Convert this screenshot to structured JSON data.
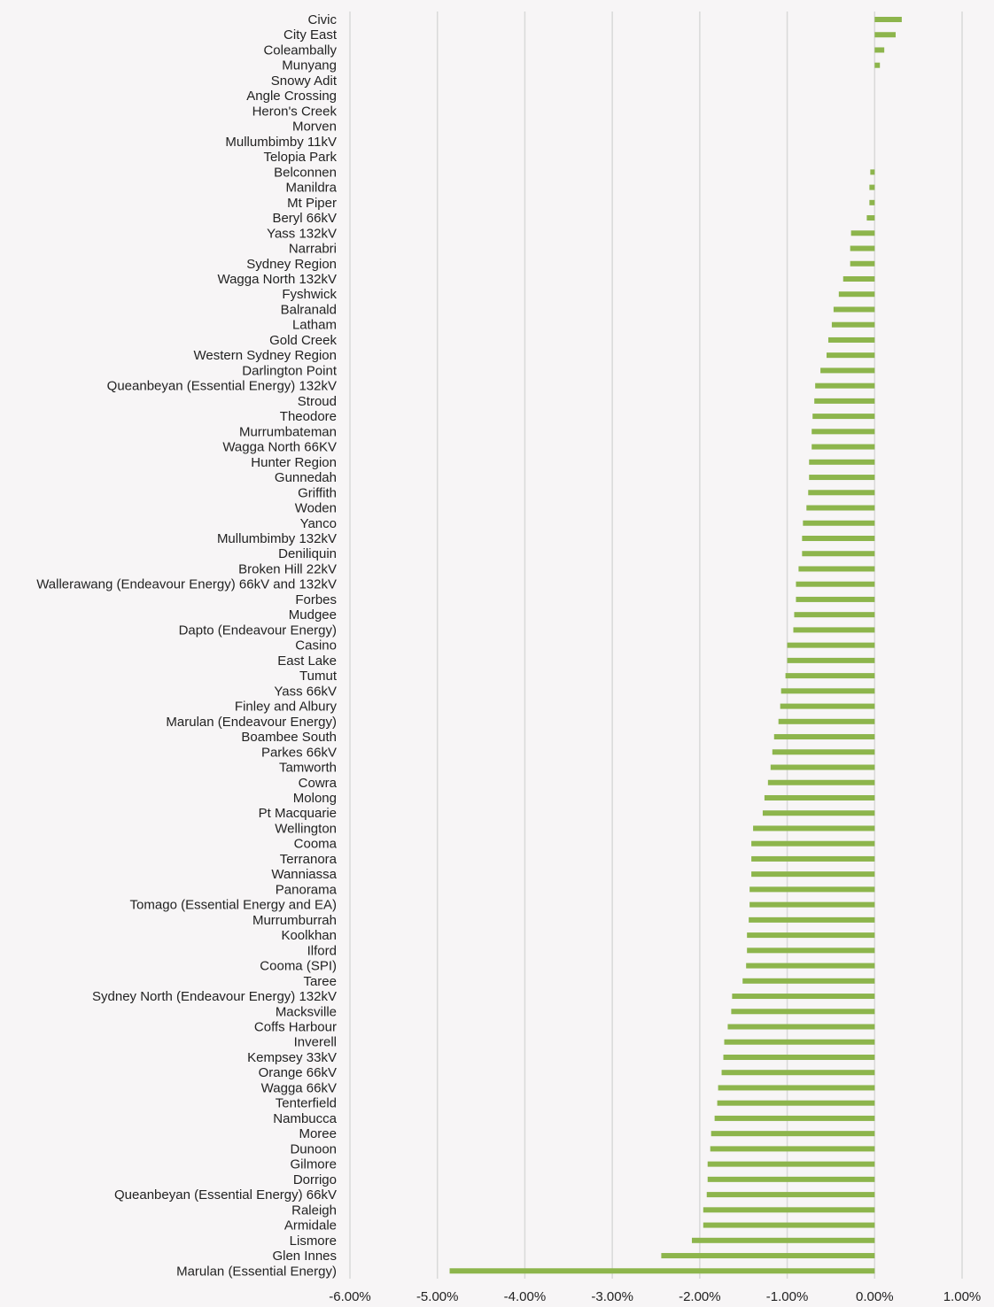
{
  "chart_data": {
    "type": "bar",
    "orientation": "horizontal",
    "title": "",
    "xlabel": "",
    "ylabel": "",
    "xlim": [
      -0.06,
      0.01
    ],
    "x_ticks": [
      -0.06,
      -0.05,
      -0.04,
      -0.03,
      -0.02,
      -0.01,
      0.0,
      0.01
    ],
    "x_tick_labels": [
      "-6.00%",
      "-5.00%",
      "-4.00%",
      "-3.00%",
      "-2.00%",
      "-1.00%",
      "0.00%",
      "1.00%"
    ],
    "grid": "vertical",
    "bar_color": "#8db54c",
    "categories": [
      "Civic",
      "City East",
      "Coleambally",
      "Munyang",
      "Snowy Adit",
      "Angle Crossing",
      "Heron's Creek",
      "Morven",
      "Mullumbimby 11kV",
      "Telopia Park",
      "Belconnen",
      "Manildra",
      "Mt Piper",
      "Beryl 66kV",
      "Yass 132kV",
      "Narrabri",
      "Sydney Region",
      "Wagga North 132kV",
      "Fyshwick",
      "Balranald",
      "Latham",
      "Gold Creek",
      "Western Sydney Region",
      "Darlington Point",
      "Queanbeyan (Essential Energy) 132kV",
      "Stroud",
      "Theodore",
      "Murrumbateman",
      "Wagga North 66KV",
      "Hunter Region",
      "Gunnedah",
      "Griffith",
      "Woden",
      "Yanco",
      "Mullumbimby 132kV",
      "Deniliquin",
      "Broken Hill 22kV",
      "Wallerawang (Endeavour Energy) 66kV and 132kV",
      "Forbes",
      "Mudgee",
      "Dapto (Endeavour Energy)",
      "Casino",
      "East Lake",
      "Tumut",
      "Yass 66kV",
      "Finley and Albury",
      "Marulan (Endeavour Energy)",
      "Boambee South",
      "Parkes 66kV",
      "Tamworth",
      "Cowra",
      "Molong",
      "Pt Macquarie",
      "Wellington",
      "Cooma",
      "Terranora",
      "Wanniassa",
      "Panorama",
      "Tomago (Essential Energy and EA)",
      "Murrumburrah",
      "Koolkhan",
      "Ilford",
      "Cooma (SPI)",
      "Taree",
      "Sydney North (Endeavour Energy) 132kV",
      "Macksville",
      "Coffs Harbour",
      "Inverell",
      "Kempsey 33kV",
      "Orange 66kV",
      "Wagga 66kV",
      "Tenterfield",
      "Nambucca",
      "Moree",
      "Dunoon",
      "Gilmore",
      "Dorrigo",
      "Queanbeyan (Essential Energy) 66kV",
      "Raleigh",
      "Armidale",
      "Lismore",
      "Glen Innes",
      "Marulan (Essential Energy)"
    ],
    "values": [
      0.0031,
      0.0024,
      0.0011,
      0.0006,
      0.0,
      0.0,
      0.0,
      0.0,
      0.0,
      0.0,
      -0.0005,
      -0.0006,
      -0.0006,
      -0.0009,
      -0.0027,
      -0.0028,
      -0.0028,
      -0.0036,
      -0.0041,
      -0.0047,
      -0.0049,
      -0.0053,
      -0.0055,
      -0.0062,
      -0.0068,
      -0.0069,
      -0.0071,
      -0.0072,
      -0.0072,
      -0.0075,
      -0.0075,
      -0.0076,
      -0.0078,
      -0.0082,
      -0.0083,
      -0.0083,
      -0.0087,
      -0.009,
      -0.009,
      -0.0092,
      -0.0093,
      -0.01,
      -0.01,
      -0.0102,
      -0.0107,
      -0.0108,
      -0.011,
      -0.0115,
      -0.0117,
      -0.0119,
      -0.0122,
      -0.0126,
      -0.0128,
      -0.0139,
      -0.0141,
      -0.0141,
      -0.0141,
      -0.0143,
      -0.0143,
      -0.0144,
      -0.0146,
      -0.0146,
      -0.0147,
      -0.0151,
      -0.0163,
      -0.0164,
      -0.0168,
      -0.0172,
      -0.0173,
      -0.0175,
      -0.0179,
      -0.018,
      -0.0183,
      -0.0187,
      -0.0188,
      -0.0191,
      -0.0191,
      -0.0192,
      -0.0196,
      -0.0196,
      -0.0209,
      -0.0244,
      -0.0486
    ]
  }
}
